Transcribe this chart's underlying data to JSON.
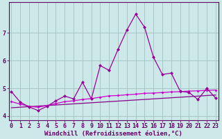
{
  "xlabel": "Windchill (Refroidissement éolien,°C)",
  "x": [
    0,
    1,
    2,
    3,
    4,
    5,
    6,
    7,
    8,
    9,
    10,
    11,
    12,
    13,
    14,
    15,
    16,
    17,
    18,
    19,
    20,
    21,
    22,
    23
  ],
  "line1": [
    4.88,
    4.5,
    4.33,
    4.2,
    4.35,
    4.55,
    4.72,
    4.62,
    5.22,
    4.62,
    5.82,
    5.65,
    6.4,
    7.1,
    7.68,
    7.2,
    6.12,
    5.5,
    5.55,
    4.9,
    4.85,
    4.6,
    5.0,
    4.65
  ],
  "line2": [
    4.52,
    4.43,
    4.35,
    4.32,
    4.38,
    4.45,
    4.52,
    4.55,
    4.6,
    4.63,
    4.68,
    4.73,
    4.74,
    4.77,
    4.79,
    4.82,
    4.83,
    4.85,
    4.87,
    4.88,
    4.9,
    4.91,
    4.93,
    4.94
  ],
  "line3": [
    4.3,
    4.32,
    4.34,
    4.36,
    4.38,
    4.4,
    4.42,
    4.44,
    4.46,
    4.48,
    4.5,
    4.52,
    4.54,
    4.56,
    4.58,
    4.6,
    4.62,
    4.64,
    4.66,
    4.68,
    4.7,
    4.72,
    4.74,
    4.76
  ],
  "line_color1": "#990099",
  "line_color2": "#cc00cc",
  "line_color3": "#880088",
  "bg_color": "#cce8e8",
  "grid_color": "#99bbbb",
  "axis_color": "#660066",
  "ylim": [
    3.85,
    8.1
  ],
  "yticks": [
    4,
    5,
    6,
    7
  ],
  "label_fontsize": 6.5,
  "tick_fontsize": 6.0
}
